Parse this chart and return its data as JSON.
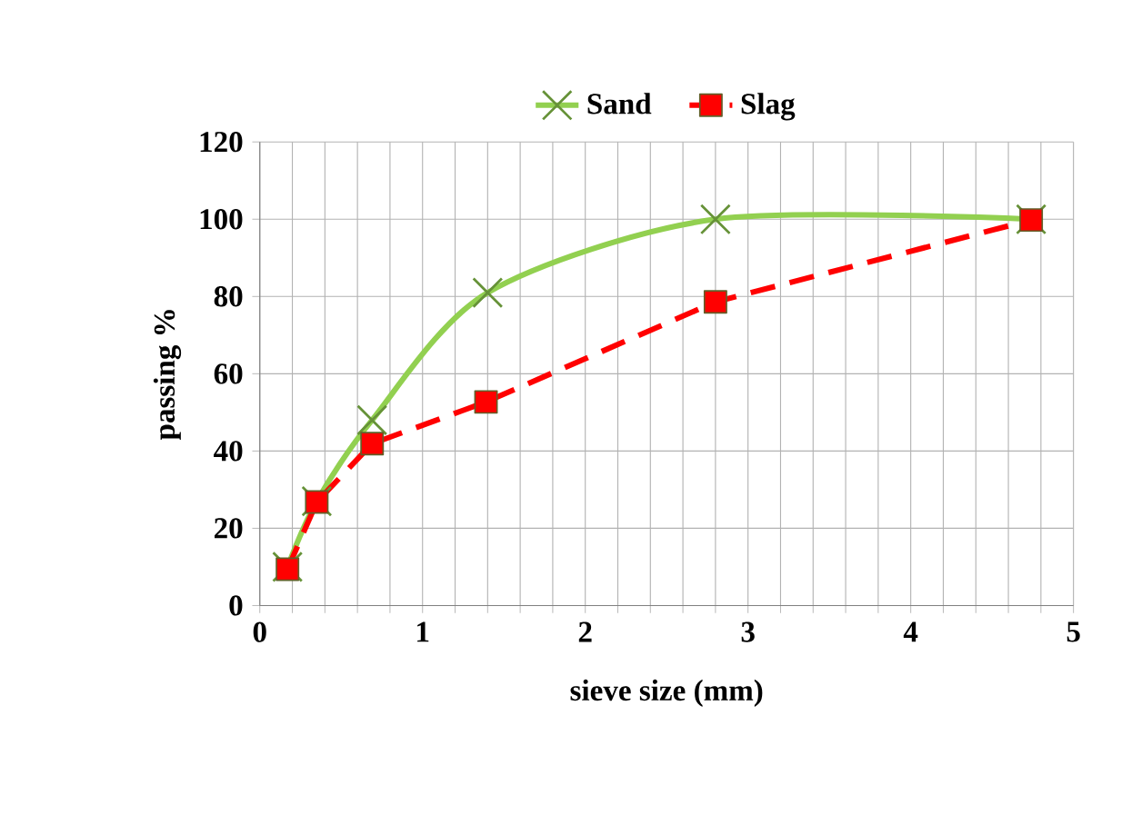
{
  "chart_data": {
    "type": "line",
    "xlabel": "sieve  size (mm)",
    "ylabel": "passing %",
    "xlim": [
      0,
      5
    ],
    "ylim": [
      0,
      120
    ],
    "xticks": [
      0,
      {
        "value": 0.2,
        "label": null
      },
      {
        "value": 0.4,
        "label": null
      },
      {
        "value": 0.6,
        "label": null
      },
      {
        "value": 0.8,
        "label": null
      },
      1,
      {
        "value": 1.2,
        "label": null
      },
      {
        "value": 1.4,
        "label": null
      },
      {
        "value": 1.6,
        "label": null
      },
      {
        "value": 1.8,
        "label": null
      },
      2,
      {
        "value": 2.2,
        "label": null
      },
      {
        "value": 2.4,
        "label": null
      },
      {
        "value": 2.6,
        "label": null
      },
      {
        "value": 2.8,
        "label": null
      },
      3,
      {
        "value": 3.2,
        "label": null
      },
      {
        "value": 3.4,
        "label": null
      },
      {
        "value": 3.6,
        "label": null
      },
      {
        "value": 3.8,
        "label": null
      },
      4,
      {
        "value": 4.2,
        "label": null
      },
      {
        "value": 4.4,
        "label": null
      },
      {
        "value": 4.6,
        "label": null
      },
      {
        "value": 4.8,
        "label": null
      },
      5
    ],
    "yticks": [
      0,
      20,
      40,
      60,
      80,
      100,
      120
    ],
    "grid": true,
    "legend": "top",
    "series": [
      {
        "name": "Sand",
        "color": "#92d050",
        "marker": "cross",
        "line_style": "solid",
        "x": [
          0.17,
          0.35,
          0.69,
          1.4,
          2.8,
          4.74
        ],
        "values": [
          10,
          27,
          48,
          81,
          100,
          100
        ]
      },
      {
        "name": "Slag",
        "color": "#ff0000",
        "marker": "square",
        "line_style": "dashed",
        "x": [
          0.17,
          0.35,
          0.69,
          1.39,
          2.8,
          4.74
        ],
        "values": [
          9.4,
          26.8,
          41.9,
          52.7,
          78.6,
          99.8
        ]
      }
    ]
  }
}
